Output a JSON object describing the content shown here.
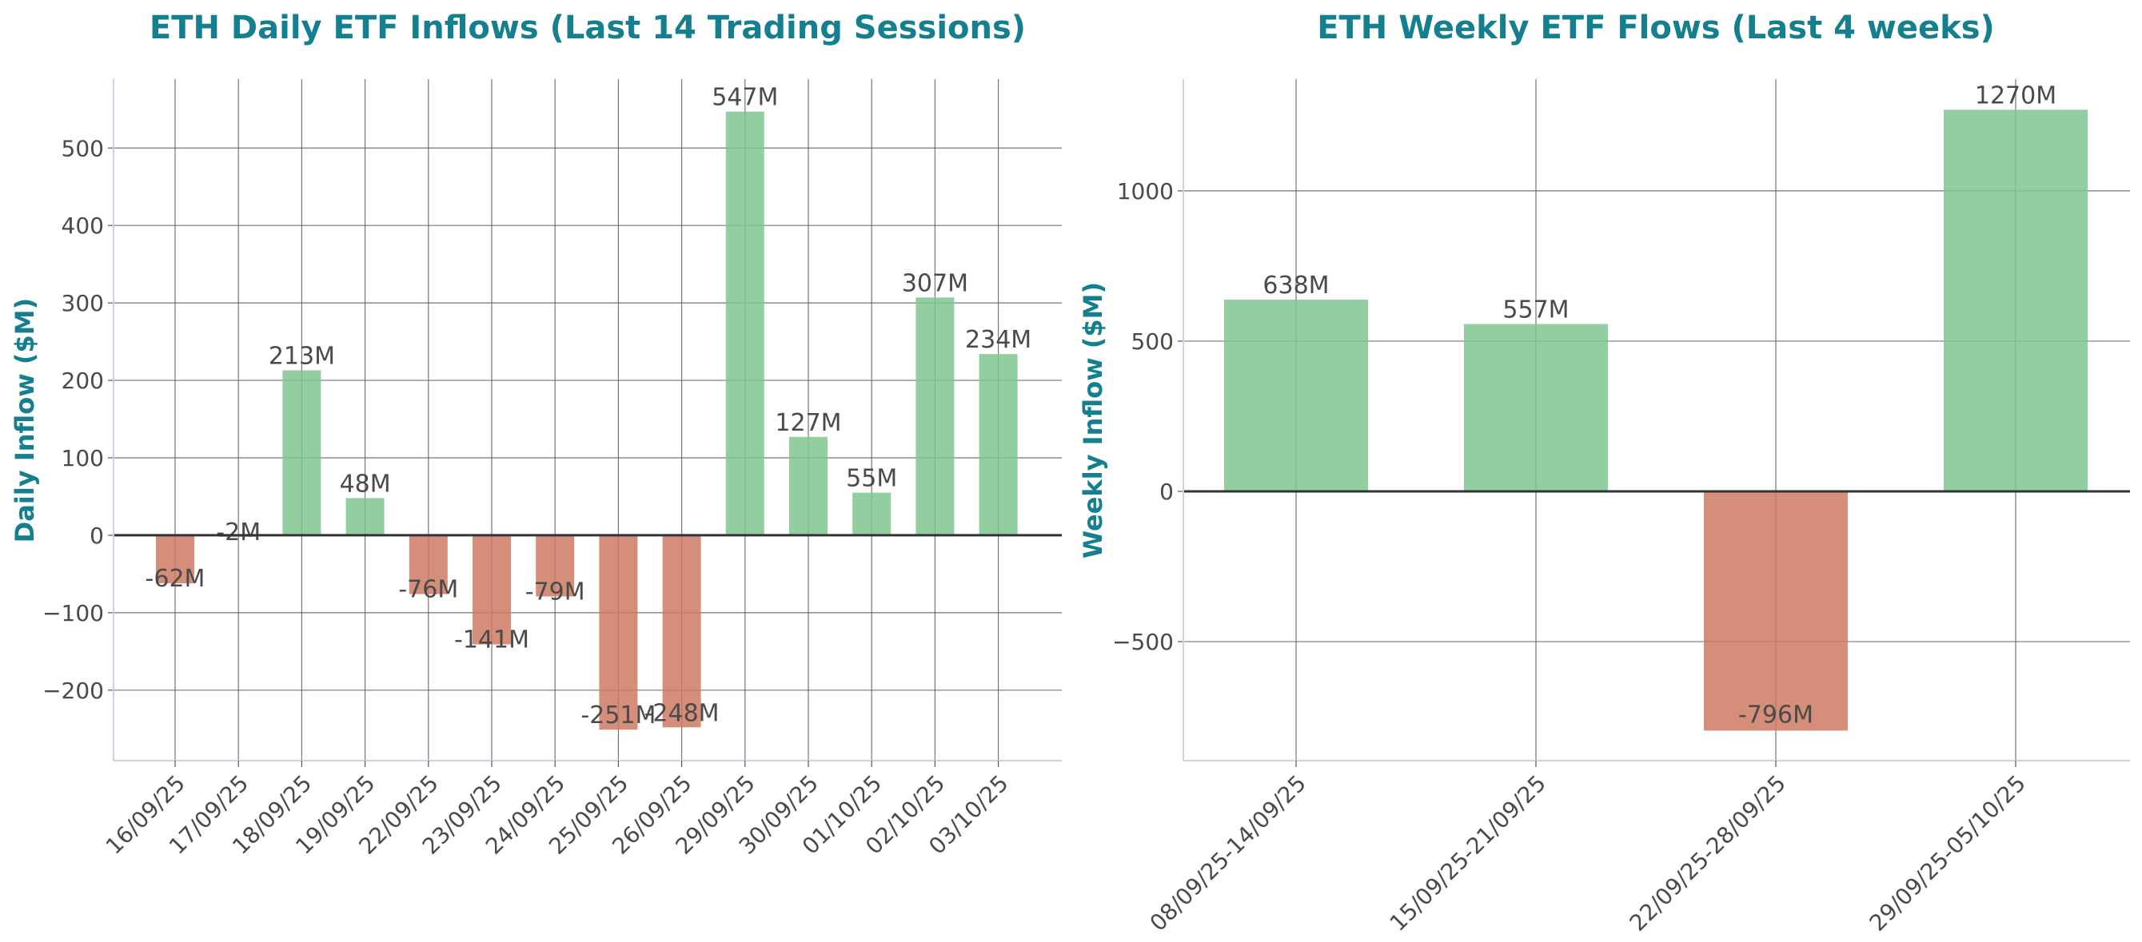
{
  "colors": {
    "positive": "#7fc68f",
    "negative": "#cd7a62",
    "title": "#14808f",
    "text": "#4a4a4a",
    "grid": "#555555"
  },
  "chart_data": [
    {
      "type": "bar",
      "title": "ETH Daily ETF Inflows (Last 14 Trading Sessions)",
      "xlabel": "",
      "ylabel": "Daily Inflow ($M)",
      "ylim": [
        -291,
        589
      ],
      "yticks": [
        -200,
        -100,
        0,
        100,
        200,
        300,
        400,
        500
      ],
      "ytick_labels": [
        "−200",
        "−100",
        "0",
        "100",
        "200",
        "300",
        "400",
        "500"
      ],
      "grid": true,
      "categories": [
        "16/09/25",
        "17/09/25",
        "18/09/25",
        "19/09/25",
        "22/09/25",
        "23/09/25",
        "24/09/25",
        "25/09/25",
        "26/09/25",
        "29/09/25",
        "30/09/25",
        "01/10/25",
        "02/10/25",
        "03/10/25"
      ],
      "values": [
        -62,
        -2,
        213,
        48,
        -76,
        -141,
        -79,
        -251,
        -248,
        547,
        127,
        55,
        307,
        234
      ],
      "data_labels": [
        "-62M",
        "-2M",
        "213M",
        "48M",
        "-76M",
        "-141M",
        "-79M",
        "-251M",
        "-248M",
        "547M",
        "127M",
        "55M",
        "307M",
        "234M"
      ]
    },
    {
      "type": "bar",
      "title": "ETH Weekly ETF Flows (Last 4 weeks)",
      "xlabel": "",
      "ylabel": "Weekly Inflow ($M)",
      "ylim": [
        -896,
        1372
      ],
      "yticks": [
        -500,
        0,
        500,
        1000
      ],
      "ytick_labels": [
        "−500",
        "0",
        "500",
        "1000"
      ],
      "grid": true,
      "categories": [
        "08/09/25-14/09/25",
        "15/09/25-21/09/25",
        "22/09/25-28/09/25",
        "29/09/25-05/10/25"
      ],
      "values": [
        638,
        557,
        -796,
        1270
      ],
      "data_labels": [
        "638M",
        "557M",
        "-796M",
        "1270M"
      ]
    }
  ]
}
